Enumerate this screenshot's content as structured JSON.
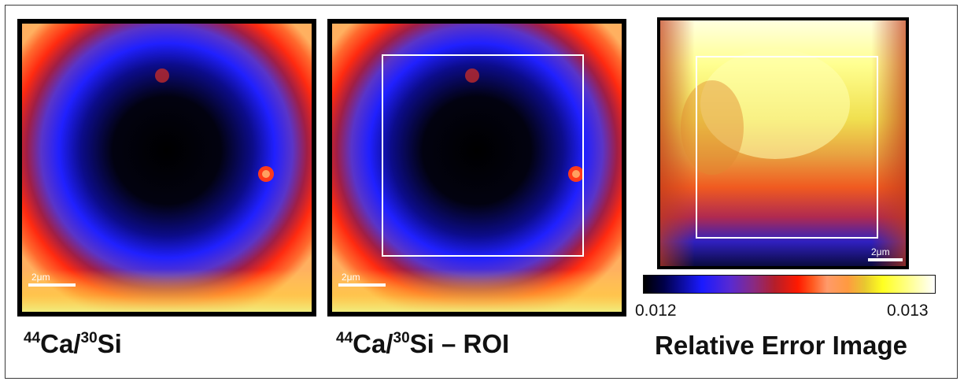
{
  "panels": [
    {
      "id": "ratio",
      "caption_sup1": "44",
      "caption_el1": "Ca/",
      "caption_sup2": "30",
      "caption_el2": "Si",
      "caption_suffix": "",
      "scale_bar": "2μm"
    },
    {
      "id": "ratio-roi",
      "caption_sup1": "44",
      "caption_el1": "Ca/",
      "caption_sup2": "30",
      "caption_el2": "Si",
      "caption_suffix": " – ROI",
      "scale_bar": "2μm"
    },
    {
      "id": "relative-error",
      "caption": "Relative Error Image",
      "scale_bar": "2μm"
    }
  ],
  "colorbar": {
    "min_label": "0.012",
    "max_label": "0.013"
  },
  "colors": {
    "frame": "#3a3a3a",
    "roi_box": "#ffffff",
    "caption_text": "#111111"
  }
}
